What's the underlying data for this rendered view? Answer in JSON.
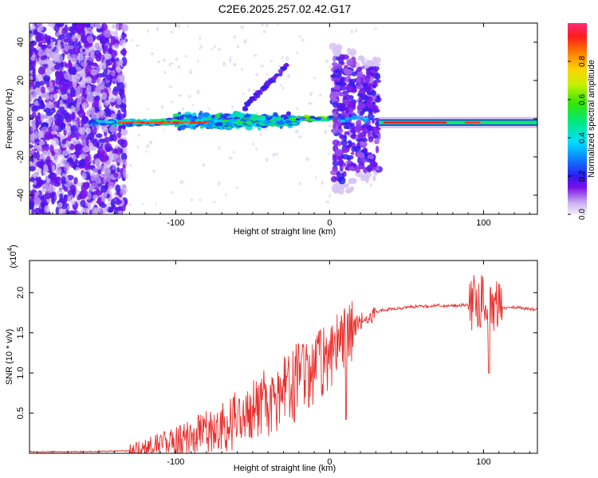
{
  "title": "C2E6.2025.257.02.42.G17",
  "chart_data": [
    {
      "type": "heatmap",
      "name": "spectrogram",
      "xlabel": "Height of straight line (km)",
      "ylabel": "Frequency (Hz)",
      "xlim": [
        -195,
        135
      ],
      "ylim": [
        -50,
        50
      ],
      "xticks": [
        -100,
        0,
        100
      ],
      "yticks": [
        -40,
        -20,
        0,
        20,
        40
      ],
      "colorbar": {
        "label": "Normalized spectral amplitude",
        "range": [
          0,
          1
        ],
        "ticks": [
          0.0,
          0.2,
          0.4,
          0.6,
          0.8
        ]
      },
      "features": [
        {
          "desc": "broadband noise",
          "x_range": [
            -195,
            -130
          ],
          "freq_range": [
            -50,
            50
          ]
        },
        {
          "desc": "tone band",
          "x_range": [
            -155,
            -20
          ],
          "freq_center": -2
        },
        {
          "desc": "spread band",
          "x_range": [
            -100,
            -25
          ],
          "freq_range": [
            -8,
            8
          ]
        },
        {
          "desc": "rising branch",
          "x_range": [
            -55,
            -28
          ],
          "freq_range": [
            6,
            28
          ]
        },
        {
          "desc": "tone band",
          "x_range": [
            -25,
            5
          ],
          "freq_center": 0
        },
        {
          "desc": "burst",
          "x_range": [
            3,
            16
          ],
          "freq_range": [
            -35,
            35
          ]
        },
        {
          "desc": "burst",
          "x_range": [
            18,
            32
          ],
          "freq_range": [
            -30,
            30
          ]
        },
        {
          "desc": "steady tone",
          "x_range": [
            32,
            135
          ],
          "freq_center": -2
        }
      ]
    },
    {
      "type": "line",
      "name": "snr",
      "xlabel": "Height of straight line (km)",
      "ylabel": "SNR (10 * v/v)",
      "multiplier_label": "(x10",
      "multiplier_exp": "4",
      "multiplier_close": ")",
      "xlim": [
        -195,
        135
      ],
      "ylim": [
        0,
        2.4
      ],
      "xticks": [
        -100,
        0,
        100
      ],
      "yticks": [
        0.5,
        1.0,
        1.5,
        2.0
      ],
      "series": [
        {
          "name": "SNR",
          "color": "#e8302e",
          "x": [
            -195,
            -160,
            -130,
            -120,
            -110,
            -100,
            -90,
            -80,
            -70,
            -60,
            -50,
            -40,
            -30,
            -20,
            -10,
            0,
            10,
            15,
            20,
            25,
            30,
            40,
            50,
            60,
            70,
            80,
            90,
            95,
            100,
            103,
            106,
            110,
            120,
            130,
            135
          ],
          "y": [
            0.02,
            0.02,
            0.03,
            0.06,
            0.1,
            0.12,
            0.18,
            0.25,
            0.33,
            0.42,
            0.52,
            0.63,
            0.75,
            0.9,
            1.05,
            1.2,
            1.38,
            1.55,
            1.65,
            1.72,
            1.76,
            1.8,
            1.82,
            1.83,
            1.84,
            1.84,
            1.85,
            1.88,
            1.9,
            1.85,
            1.82,
            1.8,
            1.82,
            1.79,
            1.8
          ]
        }
      ]
    }
  ]
}
